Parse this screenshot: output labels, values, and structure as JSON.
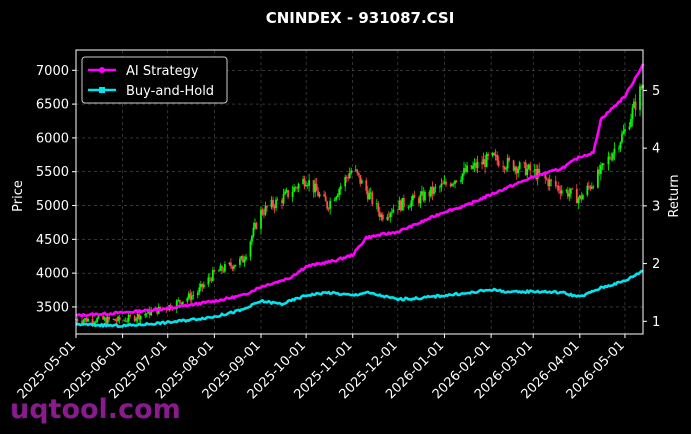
{
  "chart_data": {
    "type": "line",
    "title": "CNINDEX - 931087.CSI",
    "ylabel_left": "Price",
    "ylabel_right": "Return",
    "x_ticks": [
      "2025-05-01",
      "2025-06-01",
      "2025-07-01",
      "2025-08-01",
      "2025-09-01",
      "2025-10-01",
      "2025-11-01",
      "2025-12-01",
      "2026-01-01",
      "2026-02-01",
      "2026-03-01",
      "2026-04-01",
      "2026-05-01"
    ],
    "xlim": [
      "2025-05-01",
      "2026-05-13"
    ],
    "ylim_left": [
      3100,
      7300
    ],
    "yticks_left": [
      3500,
      4000,
      4500,
      5000,
      5500,
      6000,
      6500,
      7000
    ],
    "ylim_right": [
      0.78,
      5.7
    ],
    "yticks_right": [
      1,
      2,
      3,
      4,
      5
    ],
    "grid": true,
    "legend_position": "top-left",
    "series": [
      {
        "name": "AI Strategy",
        "axis": "right",
        "color": "#ff00ff",
        "marker": "circle",
        "points": [
          [
            "2025-05-01",
            1.1
          ],
          [
            "2025-06-01",
            1.15
          ],
          [
            "2025-07-01",
            1.22
          ],
          [
            "2025-07-20",
            1.3
          ],
          [
            "2025-08-01",
            1.35
          ],
          [
            "2025-08-20",
            1.45
          ],
          [
            "2025-09-01",
            1.6
          ],
          [
            "2025-09-20",
            1.75
          ],
          [
            "2025-10-01",
            1.95
          ],
          [
            "2025-10-20",
            2.05
          ],
          [
            "2025-11-01",
            2.15
          ],
          [
            "2025-11-10",
            2.45
          ],
          [
            "2025-11-20",
            2.5
          ],
          [
            "2025-12-01",
            2.55
          ],
          [
            "2025-12-15",
            2.7
          ],
          [
            "2026-01-01",
            2.9
          ],
          [
            "2026-01-15",
            3.0
          ],
          [
            "2026-02-01",
            3.2
          ],
          [
            "2026-02-15",
            3.35
          ],
          [
            "2026-03-01",
            3.5
          ],
          [
            "2026-03-20",
            3.65
          ],
          [
            "2026-04-01",
            3.85
          ],
          [
            "2026-04-10",
            3.92
          ],
          [
            "2026-04-15",
            4.5
          ],
          [
            "2026-05-01",
            4.9
          ],
          [
            "2026-05-13",
            5.45
          ]
        ]
      },
      {
        "name": "Buy-and-Hold",
        "axis": "right",
        "color": "#00e5ee",
        "marker": "square",
        "points": [
          [
            "2025-05-01",
            0.95
          ],
          [
            "2025-06-01",
            0.92
          ],
          [
            "2025-07-01",
            0.98
          ],
          [
            "2025-08-01",
            1.08
          ],
          [
            "2025-08-20",
            1.2
          ],
          [
            "2025-09-01",
            1.35
          ],
          [
            "2025-09-15",
            1.3
          ],
          [
            "2025-10-01",
            1.45
          ],
          [
            "2025-10-15",
            1.5
          ],
          [
            "2025-11-01",
            1.45
          ],
          [
            "2025-11-10",
            1.5
          ],
          [
            "2025-12-01",
            1.38
          ],
          [
            "2025-12-15",
            1.4
          ],
          [
            "2026-01-01",
            1.45
          ],
          [
            "2026-01-15",
            1.48
          ],
          [
            "2026-02-01",
            1.55
          ],
          [
            "2026-02-15",
            1.5
          ],
          [
            "2026-03-01",
            1.52
          ],
          [
            "2026-03-20",
            1.5
          ],
          [
            "2026-04-01",
            1.42
          ],
          [
            "2026-04-15",
            1.58
          ],
          [
            "2026-05-01",
            1.7
          ],
          [
            "2026-05-13",
            1.88
          ]
        ]
      }
    ],
    "candles": {
      "axis": "left",
      "up_color": "#00ff00",
      "down_color": "#ff4d4d",
      "close_path": [
        [
          "2025-05-01",
          3320
        ],
        [
          "2025-06-01",
          3300
        ],
        [
          "2025-07-01",
          3500
        ],
        [
          "2025-07-20",
          3700
        ],
        [
          "2025-08-01",
          4000
        ],
        [
          "2025-08-20",
          4200
        ],
        [
          "2025-09-01",
          4900
        ],
        [
          "2025-09-15",
          5100
        ],
        [
          "2025-10-01",
          5400
        ],
        [
          "2025-10-15",
          5000
        ],
        [
          "2025-11-01",
          5550
        ],
        [
          "2025-11-20",
          4850
        ],
        [
          "2025-12-01",
          5000
        ],
        [
          "2025-12-15",
          5100
        ],
        [
          "2026-01-01",
          5300
        ],
        [
          "2026-01-15",
          5500
        ],
        [
          "2026-02-01",
          5700
        ],
        [
          "2026-02-15",
          5600
        ],
        [
          "2026-03-01",
          5500
        ],
        [
          "2026-03-15",
          5300
        ],
        [
          "2026-04-01",
          5100
        ],
        [
          "2026-04-15",
          5500
        ],
        [
          "2026-05-01",
          6100
        ],
        [
          "2026-05-13",
          6800
        ]
      ]
    }
  },
  "watermark": "uqtool.com"
}
